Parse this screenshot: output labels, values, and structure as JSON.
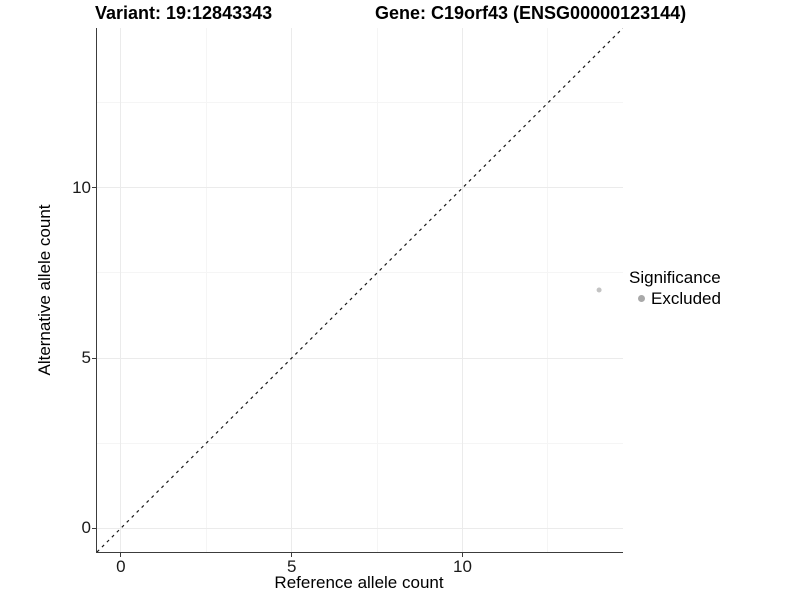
{
  "window": {
    "background": "#ffffff"
  },
  "chart_data": {
    "type": "scatter",
    "title_left": "Variant: 19:12843343",
    "title_right": "Gene: C19orf43 (ENSG00000123144)",
    "xlabel": "Reference allele count",
    "ylabel": "Alternative allele count",
    "xlim": [
      -0.7,
      14.7
    ],
    "ylim": [
      -0.7,
      14.7
    ],
    "x_ticks": [
      0,
      5,
      10
    ],
    "y_ticks": [
      0,
      5,
      10
    ],
    "x_minor_ticks": [
      2.5,
      7.5,
      12.5
    ],
    "y_minor_ticks": [
      2.5,
      7.5,
      12.5
    ],
    "grid": "white panel, faint major and minor gridlines, axis lines left and bottom only",
    "series": [
      {
        "name": "Excluded",
        "color": "#c3c3c3",
        "point_radius": 2.5,
        "points": [
          {
            "x": 14,
            "y": 7
          }
        ]
      }
    ],
    "reference_line": {
      "kind": "identity y=x",
      "style": "dashed",
      "color": "#1a1a1a",
      "x1": -0.7,
      "y1": -0.7,
      "x2": 14.7,
      "y2": 14.7
    },
    "legend": {
      "title": "Significance",
      "position": "right-middle",
      "entries": [
        {
          "label": "Excluded",
          "color": "#a9a9a9"
        }
      ]
    }
  },
  "colors": {
    "grid_major": "#ebebeb",
    "grid_minor": "#f5f5f5",
    "axis_line": "#3c3c3c",
    "title_text": "#000000",
    "tick_text": "#1a1a1a"
  }
}
